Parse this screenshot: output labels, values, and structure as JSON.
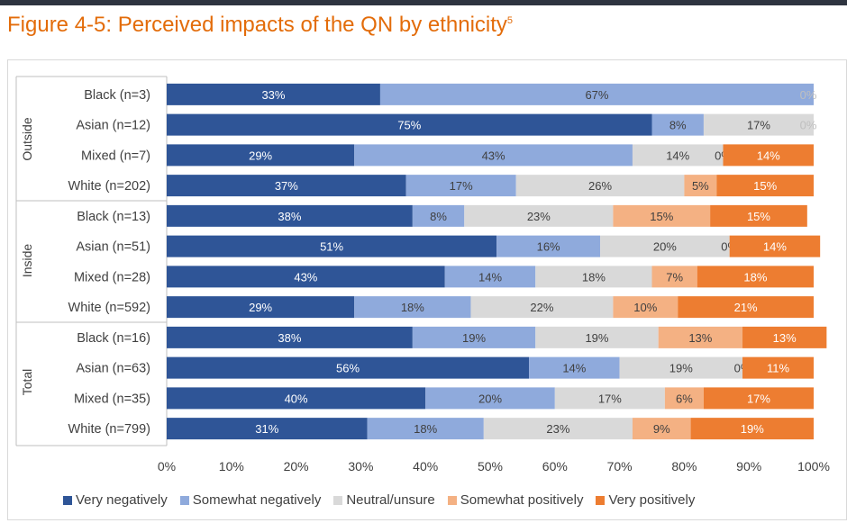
{
  "figure": {
    "title": "Figure 4-5: Perceived impacts of the QN by ethnicity",
    "superscript": "5"
  },
  "chart_data": {
    "type": "bar",
    "orientation": "horizontal",
    "stacked": true,
    "percent": true,
    "xlim": [
      0,
      100
    ],
    "xticks": [
      "0%",
      "10%",
      "20%",
      "30%",
      "40%",
      "50%",
      "60%",
      "70%",
      "80%",
      "90%",
      "100%"
    ],
    "grid": false,
    "legend_position": "bottom",
    "groups": [
      {
        "name": "Outside",
        "categories": [
          "Black (n=3)",
          "Asian (n=12)",
          "Mixed (n=7)",
          "White (n=202)"
        ]
      },
      {
        "name": "Inside",
        "categories": [
          "Black (n=13)",
          "Asian (n=51)",
          "Mixed (n=28)",
          "White (n=592)"
        ]
      },
      {
        "name": "Total",
        "categories": [
          "Black (n=16)",
          "Asian (n=63)",
          "Mixed (n=35)",
          "White (n=799)"
        ]
      }
    ],
    "series": [
      {
        "name": "Very negatively",
        "color": "#2f5597",
        "values": [
          33,
          75,
          29,
          37,
          38,
          51,
          43,
          29,
          38,
          56,
          40,
          31
        ]
      },
      {
        "name": "Somewhat negatively",
        "color": "#8faadc",
        "values": [
          67,
          8,
          43,
          17,
          8,
          16,
          14,
          18,
          19,
          14,
          20,
          18
        ]
      },
      {
        "name": "Neutral/unsure",
        "color": "#d9d9d9",
        "values": [
          0,
          17,
          14,
          26,
          23,
          20,
          18,
          22,
          19,
          19,
          17,
          23
        ]
      },
      {
        "name": "Somewhat positively",
        "color": "#f4b183",
        "values": [
          0,
          0,
          0,
          5,
          15,
          0,
          7,
          10,
          13,
          0,
          6,
          9
        ]
      },
      {
        "name": "Very positively",
        "color": "#ed7d31",
        "values": [
          0,
          0,
          14,
          15,
          15,
          14,
          18,
          21,
          13,
          11,
          17,
          19
        ]
      }
    ],
    "data_labels": [
      [
        "33%",
        "67%",
        "0%",
        "",
        ""
      ],
      [
        "75%",
        "8%",
        "17%",
        "0%",
        ""
      ],
      [
        "29%",
        "43%",
        "14%",
        "0%",
        "14%"
      ],
      [
        "37%",
        "17%",
        "26%",
        "5%",
        "15%"
      ],
      [
        "38%",
        "8%",
        "23%",
        "15%",
        "15%"
      ],
      [
        "51%",
        "16%",
        "20%",
        "0%",
        "14%"
      ],
      [
        "43%",
        "14%",
        "18%",
        "7%",
        "18%"
      ],
      [
        "29%",
        "18%",
        "22%",
        "10%",
        "21%"
      ],
      [
        "38%",
        "19%",
        "19%",
        "13%",
        "13%"
      ],
      [
        "56%",
        "14%",
        "19%",
        "0%",
        "11%"
      ],
      [
        "40%",
        "20%",
        "17%",
        "6%",
        "17%"
      ],
      [
        "31%",
        "18%",
        "23%",
        "9%",
        "19%"
      ]
    ]
  }
}
